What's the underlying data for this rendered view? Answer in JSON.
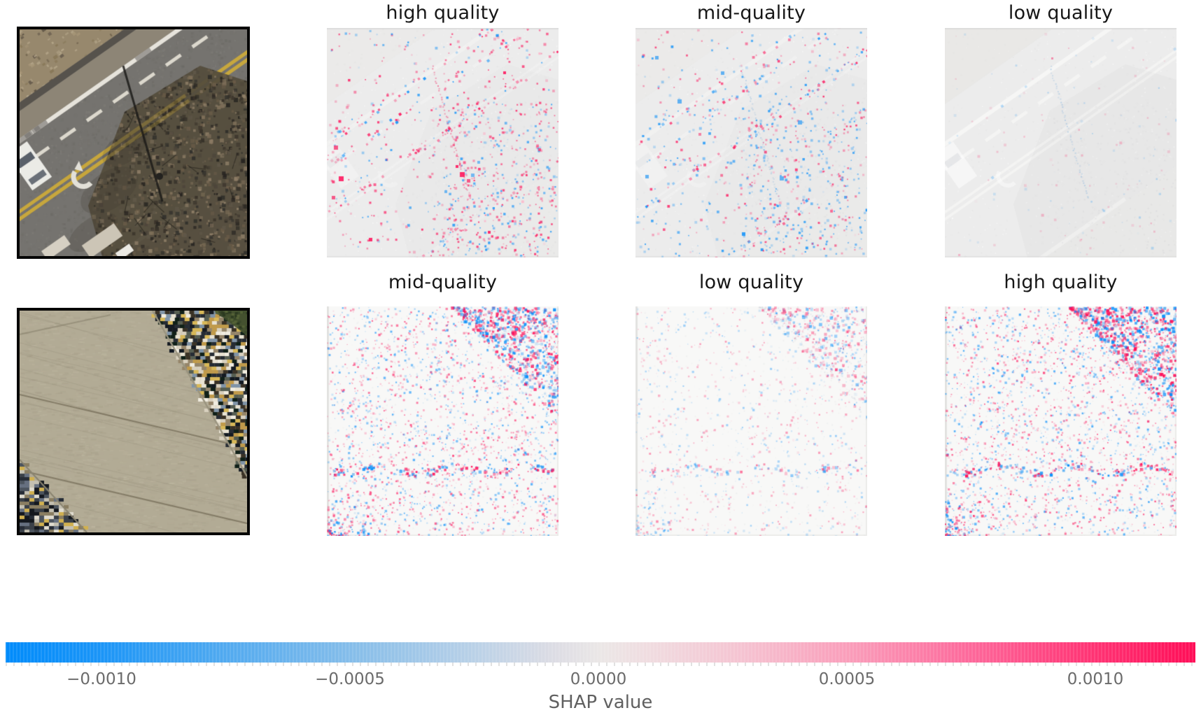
{
  "figure": {
    "background": "#ffffff",
    "rows": [
      {
        "input_image": {
          "description": "aerial photo: asphalt road with double yellow centerline, white lane lines, left-turn arrow marking, white car and bare trees",
          "border_color": "#000000"
        },
        "panels": [
          {
            "title": "high quality"
          },
          {
            "title": "mid-quality"
          },
          {
            "title": "low quality"
          }
        ]
      },
      {
        "input_image": {
          "description": "aerial photo: wide tan concrete pavement with strips of buildings and cars in the top-right and bottom-left corners",
          "border_color": "#000000"
        },
        "panels": [
          {
            "title": "mid-quality"
          },
          {
            "title": "low quality"
          },
          {
            "title": "high quality"
          }
        ]
      }
    ],
    "colorbar": {
      "label": "SHAP value",
      "tick_labels": [
        "−0.0010",
        "−0.0005",
        "0.0000",
        "0.0005",
        "0.0010"
      ],
      "negative_color": "#008bfb",
      "positive_color": "#ff0d57",
      "midpoint_color": "#ececec"
    }
  },
  "chart_data": {
    "type": "heatmap",
    "title": "",
    "description": "SHAP image plot: two input aerial images (left column) and per-class SHAP value heatmaps; red pixels = positive SHAP contribution, blue pixels = negative SHAP contribution",
    "grid": {
      "rows": 2,
      "cols": 4
    },
    "rows": [
      {
        "input": "road scene with double yellow line, car and trees",
        "class_order": [
          "high quality",
          "mid-quality",
          "low quality"
        ]
      },
      {
        "input": "tan concrete pavement with building/car strips in corners",
        "class_order": [
          "mid-quality",
          "low quality",
          "high quality"
        ]
      }
    ],
    "colorbar": {
      "label": "SHAP value",
      "ticks": [
        -0.001,
        -0.0005,
        0,
        0.0005,
        0.001
      ],
      "range": [
        -0.0012,
        0.0012
      ],
      "orientation": "horizontal",
      "colormap": "SHAP red_blue (blue #008bfb → white → red #ff0d57)",
      "position": "bottom"
    },
    "legend_position": "bottom",
    "grid_lines": false
  },
  "render": {
    "road": {
      "kind": "road",
      "seed": 707
    },
    "pave": {
      "kind": "pave",
      "seed": 808
    },
    "r1p1": {
      "kind": "shap_road",
      "seed": 101,
      "lines": 270,
      "scatter": 430,
      "veg": 380,
      "pRed": 0.74,
      "alpha": 1,
      "ghost": 0.5,
      "pole": "#f23e74",
      "poleA": 0.6,
      "mode": "red"
    },
    "r1p2": {
      "kind": "shap_road",
      "seed": 202,
      "lines": 240,
      "scatter": 410,
      "veg": 330,
      "pRed": 0.4,
      "alpha": 0.95,
      "ghost": 0.5,
      "pole": "#5b9bd5",
      "poleA": 0.3,
      "mode": "blue"
    },
    "r1p3": {
      "kind": "shap_road",
      "seed": 303,
      "lines": 28,
      "scatter": 60,
      "veg": 46,
      "pRed": 0.5,
      "alpha": 0.32,
      "ghost": 1.0,
      "pole": "#79aede",
      "poleA": 0.45,
      "mode": "faint"
    },
    "r2p1": {
      "kind": "shap_pave",
      "seed": 404,
      "base": 2300,
      "tri": 660,
      "band": 150,
      "bl": 95,
      "pRed": 0.56,
      "alpha": 1
    },
    "r2p2": {
      "kind": "shap_pave",
      "seed": 505,
      "base": 1050,
      "tri": 330,
      "band": 95,
      "bl": 45,
      "pRed": 0.5,
      "alpha": 0.6
    },
    "r2p3": {
      "kind": "shap_pave",
      "seed": 606,
      "base": 2350,
      "tri": 720,
      "band": 155,
      "bl": 95,
      "pRed": 0.55,
      "alpha": 1.05
    }
  }
}
